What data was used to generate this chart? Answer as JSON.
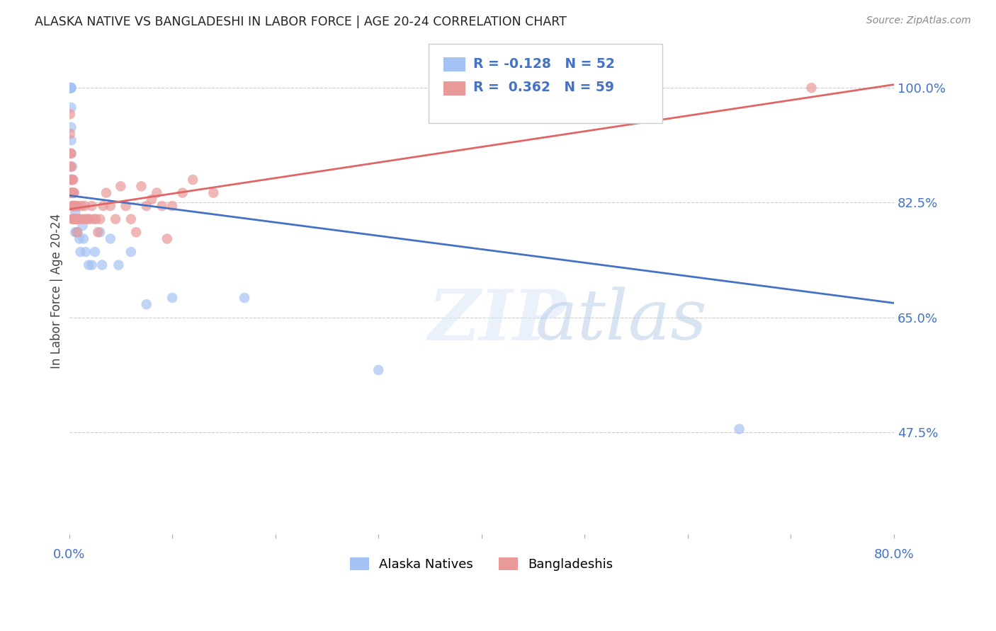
{
  "title": "ALASKA NATIVE VS BANGLADESHI IN LABOR FORCE | AGE 20-24 CORRELATION CHART",
  "source": "Source: ZipAtlas.com",
  "ylabel": "In Labor Force | Age 20-24",
  "xmin": 0.0,
  "xmax": 0.8,
  "ymin": 0.32,
  "ymax": 1.06,
  "yticks": [
    1.0,
    0.825,
    0.65,
    0.475
  ],
  "ytick_labels": [
    "100.0%",
    "82.5%",
    "65.0%",
    "47.5%"
  ],
  "color_blue": "#a4c2f4",
  "color_pink": "#ea9999",
  "color_line_blue": "#4472c4",
  "color_line_pink": "#e06666",
  "color_axis_labels": "#4472c4",
  "watermark_zip": "ZIP",
  "watermark_atlas": "atlas",
  "blue_line_x0": 0.0,
  "blue_line_y0": 0.836,
  "blue_line_x1": 0.8,
  "blue_line_y1": 0.672,
  "pink_line_x0": 0.0,
  "pink_line_y0": 0.815,
  "pink_line_x1": 0.8,
  "pink_line_y1": 1.005,
  "alaska_x": [
    0.001,
    0.001,
    0.001,
    0.001,
    0.001,
    0.001,
    0.001,
    0.001,
    0.002,
    0.002,
    0.002,
    0.002,
    0.002,
    0.002,
    0.002,
    0.003,
    0.003,
    0.003,
    0.003,
    0.003,
    0.004,
    0.004,
    0.004,
    0.004,
    0.005,
    0.005,
    0.005,
    0.006,
    0.006,
    0.006,
    0.007,
    0.007,
    0.008,
    0.008,
    0.01,
    0.011,
    0.013,
    0.014,
    0.016,
    0.019,
    0.022,
    0.025,
    0.03,
    0.032,
    0.04,
    0.048,
    0.06,
    0.075,
    0.1,
    0.17,
    0.3,
    0.65
  ],
  "alaska_y": [
    1.0,
    1.0,
    1.0,
    1.0,
    1.0,
    1.0,
    1.0,
    1.0,
    1.0,
    1.0,
    1.0,
    0.97,
    0.94,
    0.92,
    0.9,
    0.88,
    0.86,
    0.86,
    0.84,
    0.84,
    0.84,
    0.84,
    0.82,
    0.82,
    0.82,
    0.82,
    0.8,
    0.81,
    0.8,
    0.78,
    0.8,
    0.78,
    0.8,
    0.78,
    0.77,
    0.75,
    0.79,
    0.77,
    0.75,
    0.73,
    0.73,
    0.75,
    0.78,
    0.73,
    0.77,
    0.73,
    0.75,
    0.67,
    0.68,
    0.68,
    0.57,
    0.48
  ],
  "bangladeshi_x": [
    0.001,
    0.001,
    0.001,
    0.001,
    0.001,
    0.002,
    0.002,
    0.002,
    0.002,
    0.002,
    0.003,
    0.003,
    0.003,
    0.003,
    0.004,
    0.004,
    0.004,
    0.004,
    0.005,
    0.005,
    0.005,
    0.006,
    0.006,
    0.007,
    0.007,
    0.008,
    0.008,
    0.009,
    0.01,
    0.012,
    0.013,
    0.015,
    0.016,
    0.018,
    0.02,
    0.022,
    0.024,
    0.026,
    0.028,
    0.03,
    0.033,
    0.036,
    0.04,
    0.045,
    0.05,
    0.055,
    0.06,
    0.065,
    0.07,
    0.075,
    0.08,
    0.085,
    0.09,
    0.095,
    0.1,
    0.11,
    0.12,
    0.14,
    0.72
  ],
  "bangladeshi_y": [
    0.96,
    0.93,
    0.9,
    0.88,
    0.86,
    0.9,
    0.88,
    0.86,
    0.84,
    0.84,
    0.86,
    0.84,
    0.82,
    0.8,
    0.86,
    0.84,
    0.82,
    0.8,
    0.84,
    0.82,
    0.8,
    0.82,
    0.8,
    0.82,
    0.8,
    0.8,
    0.78,
    0.82,
    0.8,
    0.82,
    0.8,
    0.82,
    0.8,
    0.8,
    0.8,
    0.82,
    0.8,
    0.8,
    0.78,
    0.8,
    0.82,
    0.84,
    0.82,
    0.8,
    0.85,
    0.82,
    0.8,
    0.78,
    0.85,
    0.82,
    0.83,
    0.84,
    0.82,
    0.77,
    0.82,
    0.84,
    0.86,
    0.84,
    1.0
  ]
}
